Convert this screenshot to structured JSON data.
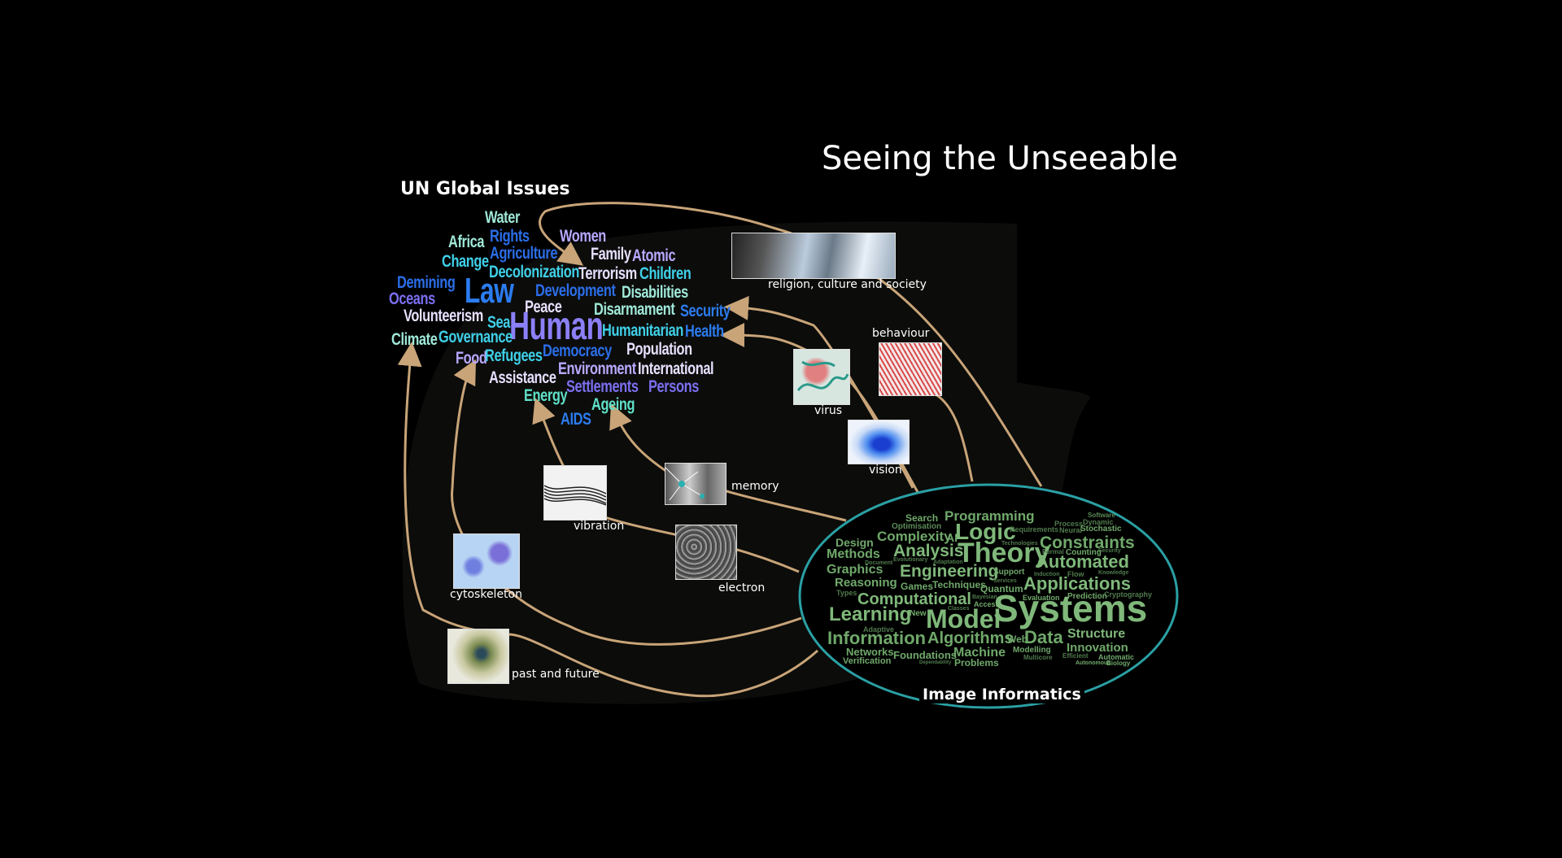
{
  "title": "Seeing the Unseeable",
  "un_heading": "UN Global Issues",
  "ii_heading": "Image Informatics",
  "un_words": [
    "Water",
    "Women",
    "Rights",
    "Africa",
    "Agriculture",
    "Family",
    "Atomic",
    "Change",
    "Decolonization",
    "Terrorism",
    "Children",
    "Demining",
    "Law",
    "Development",
    "Disabilities",
    "Oceans",
    "Peace",
    "Disarmament",
    "Security",
    "Volunteerism",
    "Sea",
    "Human",
    "Humanitarian",
    "Health",
    "Climate",
    "Governance",
    "Democracy",
    "Population",
    "Food",
    "Refugees",
    "Environment",
    "International",
    "Assistance",
    "Settlements",
    "Persons",
    "Energy",
    "Ageing",
    "AIDS"
  ],
  "ii_words": [
    "Search",
    "Programming",
    "Software",
    "Optimisation",
    "Process",
    "Dynamic",
    "Design",
    "Complexity",
    "AI",
    "Logic",
    "Requirements",
    "Neural",
    "Stochastic",
    "Constraints",
    "Methods",
    "Analysis",
    "Theory",
    "Technologies",
    "Formal",
    "Counting",
    "Security",
    "Document",
    "Evolutionary",
    "Adaptation",
    "Automated",
    "Graphics",
    "Engineering",
    "Support",
    "Induction",
    "Flow",
    "Knowledge",
    "Reasoning",
    "Games",
    "Techniques",
    "Services",
    "Applications",
    "Types",
    "Quantum",
    "Bayesian",
    "Evaluation",
    "Prediction",
    "Cryptography",
    "Computational",
    "Access",
    "Systems",
    "Classes",
    "Learning",
    "New",
    "Model",
    "Adaptive",
    "Information",
    "Algorithms",
    "Web",
    "Data",
    "Structure",
    "Networks",
    "Foundations",
    "Machine",
    "Modelling",
    "Innovation",
    "Verification",
    "Dependability",
    "Problems",
    "Multicore",
    "Efficient",
    "Automatic",
    "Autonomous",
    "Biology"
  ],
  "thumbnails": {
    "religion": "religion, culture and society",
    "behaviour": "behaviour",
    "virus": "virus",
    "vision": "vision",
    "memory": "memory",
    "vibration": "vibration",
    "electron": "electron",
    "cytoskeleton": "cytoskeleton",
    "past_future": "past and future"
  },
  "colors": {
    "background": "#000000",
    "arrow": "#c8a478",
    "ellipse": "#2aa0a4",
    "ii_text": "#6fa86a",
    "un_palette": [
      "#5fe0c8",
      "#2b6ee8",
      "#7b6ff0",
      "#b9a8ff",
      "#3fd0e8",
      "#e8e0ff",
      "#9fe8d8"
    ]
  }
}
